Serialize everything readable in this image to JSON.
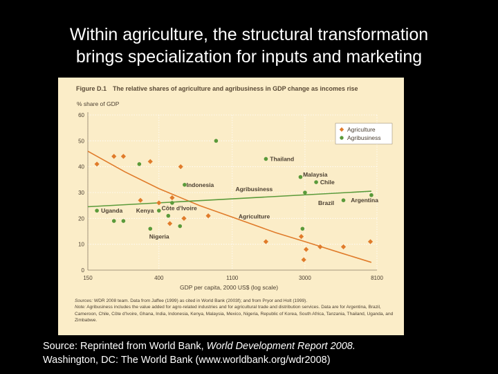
{
  "slide": {
    "title_line1": "Within agriculture, the structural transformation",
    "title_line2": "brings specialization for inputs and marketing",
    "source_prefix": "Source: Reprinted from World Bank,",
    "source_report": "World Development Report 2008.",
    "source_line2": "Washington, DC: The World Bank (www.worldbank.org/wdr2008)"
  },
  "figure": {
    "label": "Figure D.1",
    "title": "The relative shares of agriculture and agribusiness in GDP change as incomes rise",
    "sources_label": "Sources:",
    "sources_text": "WDR 2008 team. Data from Jaffee (1999) as cited in World Bank (2003f); and from Pryor and Holt (1999).",
    "note_label": "Note:",
    "note_text": "Agribusiness includes the value added for agro-related industries and for agricultural trade and distribution services. Data are for Argentina, Brazil, Cameroon, Chile, Côte d'Ivoire, Ghana, India, Indonesia, Kenya, Malaysia, Mexico, Nigeria, Republic of Korea, South Africa, Tanzania, Thailand, Uganda, and Zimbabwe."
  },
  "colors": {
    "background": "#000000",
    "panel": "#fbedc8",
    "agriculture": "#e07b2a",
    "agribusiness": "#5a9a3a",
    "axis": "#8a7a64",
    "grid": "#ffffff",
    "label_text": "#4a3e30"
  },
  "chart_data": {
    "type": "scatter",
    "title": "The relative shares of agriculture and agribusiness in GDP change as incomes rise",
    "ylabel": "% share of GDP",
    "xlabel": "GDP per capita, 2000 US$ (log scale)",
    "x_scale": "log",
    "xlim": [
      150,
      8100
    ],
    "ylim": [
      0,
      60
    ],
    "x_ticks": [
      150,
      400,
      1100,
      3000,
      8100
    ],
    "x_tick_labels": [
      "150",
      "400",
      "1100",
      "3000",
      "8100"
    ],
    "y_ticks": [
      0,
      10,
      20,
      30,
      40,
      50,
      60
    ],
    "y_tick_labels": [
      "0",
      "10",
      "20",
      "30",
      "40",
      "50",
      "60"
    ],
    "grid": true,
    "legend_position": "top-right",
    "series": [
      {
        "name": "Agriculture",
        "marker": "diamond",
        "points": [
          {
            "x": 170,
            "y": 41
          },
          {
            "x": 215,
            "y": 44
          },
          {
            "x": 245,
            "y": 44
          },
          {
            "x": 310,
            "y": 27
          },
          {
            "x": 355,
            "y": 42
          },
          {
            "x": 400,
            "y": 26
          },
          {
            "x": 465,
            "y": 18
          },
          {
            "x": 480,
            "y": 28
          },
          {
            "x": 540,
            "y": 40
          },
          {
            "x": 565,
            "y": 20
          },
          {
            "x": 790,
            "y": 21
          },
          {
            "x": 1750,
            "y": 11
          },
          {
            "x": 2850,
            "y": 13
          },
          {
            "x": 2950,
            "y": 4
          },
          {
            "x": 3050,
            "y": 8
          },
          {
            "x": 3700,
            "y": 9
          },
          {
            "x": 5100,
            "y": 9
          },
          {
            "x": 7400,
            "y": 11
          }
        ],
        "trend": [
          {
            "x": 150,
            "y": 46
          },
          {
            "x": 250,
            "y": 38
          },
          {
            "x": 400,
            "y": 31.5
          },
          {
            "x": 700,
            "y": 25
          },
          {
            "x": 1100,
            "y": 20.5
          },
          {
            "x": 2000,
            "y": 14.5
          },
          {
            "x": 3000,
            "y": 11
          },
          {
            "x": 5000,
            "y": 6.5
          },
          {
            "x": 7500,
            "y": 3
          }
        ],
        "trend_label": "Agriculture",
        "trend_label_at": {
          "x": 1200,
          "y": 20
        }
      },
      {
        "name": "Agribusiness",
        "marker": "circle",
        "points": [
          {
            "x": 170,
            "y": 23
          },
          {
            "x": 215,
            "y": 19
          },
          {
            "x": 245,
            "y": 19
          },
          {
            "x": 305,
            "y": 41
          },
          {
            "x": 355,
            "y": 16
          },
          {
            "x": 400,
            "y": 23
          },
          {
            "x": 455,
            "y": 21
          },
          {
            "x": 480,
            "y": 26
          },
          {
            "x": 535,
            "y": 17
          },
          {
            "x": 570,
            "y": 33
          },
          {
            "x": 880,
            "y": 50
          },
          {
            "x": 1750,
            "y": 43
          },
          {
            "x": 2820,
            "y": 36
          },
          {
            "x": 2900,
            "y": 16
          },
          {
            "x": 3000,
            "y": 30
          },
          {
            "x": 3500,
            "y": 34
          },
          {
            "x": 5100,
            "y": 27
          },
          {
            "x": 7500,
            "y": 29
          }
        ],
        "trend": [
          {
            "x": 150,
            "y": 24.5
          },
          {
            "x": 7500,
            "y": 30.5
          }
        ],
        "trend_label": "Agribusiness",
        "trend_label_at": {
          "x": 1150,
          "y": 30.5
        }
      }
    ],
    "annotations": [
      {
        "text": "Thailand",
        "x": 1850,
        "y": 43
      },
      {
        "text": "Indonesia",
        "x": 585,
        "y": 33
      },
      {
        "text": "Malaysia",
        "x": 2920,
        "y": 37
      },
      {
        "text": "Chile",
        "x": 3700,
        "y": 34
      },
      {
        "text": "Brazil",
        "x": 3600,
        "y": 26
      },
      {
        "text": "Argentina",
        "x": 5650,
        "y": 27
      },
      {
        "text": "Uganda",
        "x": 180,
        "y": 23
      },
      {
        "text": "Kenya",
        "x": 292,
        "y": 23
      },
      {
        "text": "Côte d'Ivoire",
        "x": 415,
        "y": 24
      },
      {
        "text": "Nigeria",
        "x": 350,
        "y": 13
      }
    ]
  }
}
